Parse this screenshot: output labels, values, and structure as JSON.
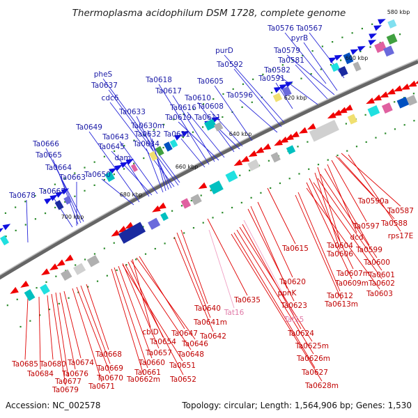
{
  "title": "Thermoplasma acidophilum DSM 1728, complete genome",
  "footer": {
    "accession": "Accession: NC_002578",
    "summary": "Topology: circular; Length: 1,564,906 bp; Genes: 1,530"
  },
  "kbp_ticks": [
    "580 kbp",
    "600 kbp",
    "620 kbp",
    "640 kbp",
    "660 kbp",
    "680 kbp",
    "700 kbp"
  ],
  "labels_outer": [
    "Ta0576",
    "Ta0567",
    "pyrB",
    "Ta0579",
    "Ta0581",
    "Ta0582",
    "Ta0591",
    "purD",
    "Ta0592",
    "Ta0596",
    "Ta0605",
    "Ta0608",
    "Ta0611",
    "Ta0610",
    "Ta0616",
    "Ta0619",
    "Ta0617",
    "Ta0618",
    "Ta0621",
    "pheS",
    "Ta0637",
    "cdc6",
    "Ta0633",
    "Ta0630m",
    "Ta0632",
    "Ta0634",
    "Ta0643",
    "Ta0645",
    "dam",
    "Ta0649",
    "Ta0650",
    "Ta0666",
    "Ta0665",
    "Ta0664",
    "Ta0663",
    "Ta0667",
    "Ta0678"
  ],
  "labels_inner": [
    "Ta0590a",
    "Ta0587",
    "Ta0588",
    "Ta0597",
    "rps17E",
    "dcd",
    "Ta0604",
    "Ta0599",
    "Ta0606",
    "Ta0600",
    "Ta0607m",
    "Ta0601",
    "Ta0609m",
    "Ta0602",
    "Ta0615",
    "Ta0603",
    "Ta0612",
    "Ta0613m",
    "Ta0620",
    "ppnK",
    "Ta0623",
    "Ta0635",
    "Ta0640",
    "Tat16",
    "Ta0641m",
    "Tat15",
    "Ta0642",
    "Ta0624",
    "Ta0625m",
    "Ta0626m",
    "Ta0627",
    "Ta0628m",
    "cbiD",
    "Ta0647",
    "Ta0646",
    "Ta0654",
    "Ta0648",
    "Ta0657",
    "Ta0651",
    "Ta0660",
    "Ta0661",
    "Ta0662m",
    "Ta0652",
    "Ta0668",
    "Ta0669",
    "Ta0670",
    "Ta0671",
    "Ta0674",
    "Ta0676",
    "Ta0677",
    "Ta0679",
    "Ta0680",
    "Ta0684",
    "Ta0685"
  ],
  "colors": {
    "forward": "#1010e0",
    "reverse": "#f00000",
    "backbone": "#606060",
    "rna": "#f0a0c4"
  }
}
